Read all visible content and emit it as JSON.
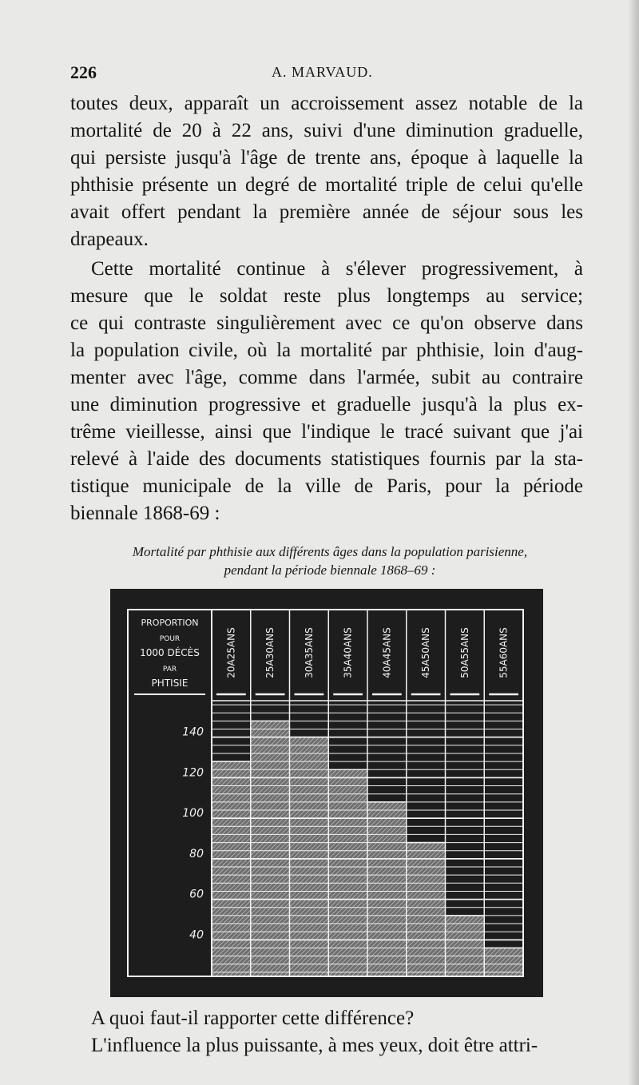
{
  "header": {
    "page_number": "226",
    "running_head": "A. MARVAUD."
  },
  "paragraph1": [
    "toutes deux, apparaît un accroissement assez notable de la",
    "mortalité de 20 à 22 ans, suivi d'une diminution graduelle,",
    "qui persiste jusqu'à l'âge de trente ans, époque à laquelle la",
    "phthisie présente un degré de mortalité triple de celui qu'elle",
    "avait offert pendant la première année de séjour sous les",
    "drapeaux."
  ],
  "paragraph2": [
    "Cette mortalité continue à s'élever progressivement, à",
    "mesure que le soldat reste plus longtemps au service;",
    "ce qui contraste singulièrement avec ce qu'on observe dans",
    "la population civile, où la mortalité par phthisie, loin d'aug-",
    "menter avec l'âge, comme dans l'armée, subit au contraire",
    "une diminution progressive et graduelle jusqu'à la plus ex-",
    "trême vieillesse, ainsi que l'indique le tracé suivant que j'ai",
    "relevé à l'aide des documents statistiques fournis par la sta-",
    "tistique municipale de la ville de Paris, pour la période",
    "biennale 1868-69 :"
  ],
  "caption": [
    "Mortalité par phthisie aux différents âges dans la population parisienne,",
    "pendant la période biennale 1868–69 :"
  ],
  "paragraph3": [
    "A quoi faut-il rapporter cette différence?"
  ],
  "paragraph4": [
    "L'influence la plus puissante, à mes yeux, doit être attri-"
  ],
  "chart_data": {
    "type": "bar",
    "ylabel_lines": [
      "PROPORTION",
      "POUR",
      "1000 DÉCÈS",
      "PAR",
      "PHTISIE"
    ],
    "categories": [
      "20 A 25 ANS",
      "25 A 30 ANS",
      "30 A 35 ANS",
      "35 A 40 ANS",
      "40 A 45 ANS",
      "45 A 50 ANS",
      "50 A 55 ANS",
      "55 A 60 ANS"
    ],
    "values": [
      128,
      148,
      140,
      124,
      108,
      88,
      52,
      36
    ],
    "yticks": [
      "140",
      "120",
      "100",
      "80",
      "60",
      "40"
    ],
    "ylim": [
      22,
      158
    ],
    "grid": true,
    "minor_grid_step": 4,
    "colors": {
      "background": "#1d1d1d",
      "lines": "#f2f2f2",
      "bar_hatch": "#8a8a8a"
    }
  }
}
